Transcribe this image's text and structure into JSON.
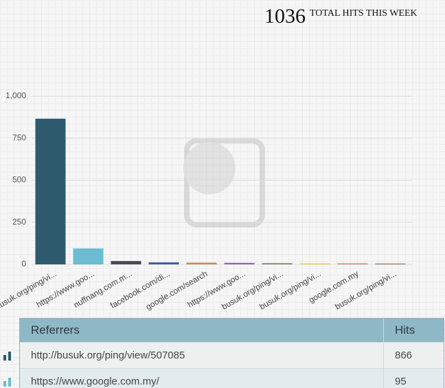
{
  "header": {
    "total": "1036",
    "label": "TOTAL HITS THIS WEEK"
  },
  "chart_data": {
    "type": "bar",
    "categories": [
      "busuk.org/ping/vi...",
      "https://www.goo...",
      "nuffnang.com.m...",
      "facebook.com/di...",
      "google.com/search",
      "https://www.goo...",
      "busuk.org/ping/vi...",
      "busuk.org/ping/vi...",
      "google.com.my",
      "busuk.org/ping/vi..."
    ],
    "values": [
      866,
      95,
      20,
      12,
      10,
      9,
      7,
      6,
      6,
      5
    ],
    "colors": [
      "#2e5a6e",
      "#6bbcd0",
      "#4a4a55",
      "#3a5bb0",
      "#c8884a",
      "#9b59b6",
      "#7a7f70",
      "#f0d040",
      "#d08080",
      "#8a7a6a"
    ],
    "ylim": [
      0,
      1000
    ],
    "yticks": [
      0,
      250,
      500,
      750,
      {
        "value": 1000,
        "label": "1,000"
      }
    ],
    "grid": true
  },
  "table": {
    "columns": [
      "Referrers",
      "Hits"
    ],
    "rows": [
      [
        "http://busuk.org/ping/view/507085",
        "866"
      ],
      [
        "https://www.google.com.my/",
        "95"
      ]
    ]
  }
}
